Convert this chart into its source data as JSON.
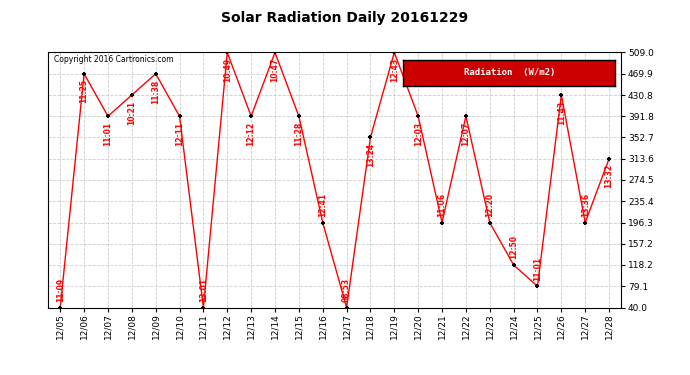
{
  "title": "Solar Radiation Daily 20161229",
  "copyright": "Copyright 2016 Cartronics.com",
  "legend_label": "Radiation  (W/m2)",
  "x_labels": [
    "12/05",
    "12/06",
    "12/07",
    "12/08",
    "12/09",
    "12/10",
    "12/11",
    "12/12",
    "12/13",
    "12/14",
    "12/15",
    "12/16",
    "12/17",
    "12/18",
    "12/19",
    "12/20",
    "12/21",
    "12/22",
    "12/23",
    "12/24",
    "12/25",
    "12/26",
    "12/27",
    "12/28"
  ],
  "y_values": [
    40.0,
    469.9,
    391.8,
    430.8,
    469.9,
    391.8,
    40.0,
    509.0,
    391.8,
    509.0,
    391.8,
    196.3,
    40.0,
    352.7,
    509.0,
    391.8,
    196.3,
    391.8,
    196.3,
    118.2,
    79.1,
    430.8,
    196.3,
    313.6
  ],
  "annotations": [
    "11:09",
    "11:25",
    "11:01",
    "10:21",
    "11:38",
    "12:11",
    "13:01",
    "10:49",
    "12:12",
    "10:47",
    "11:28",
    "12:41",
    "08:53",
    "13:24",
    "12:43",
    "12:03",
    "11:06",
    "12:07",
    "12:20",
    "12:50",
    "11:01",
    "11:43",
    "13:36",
    "13:32"
  ],
  "ylim": [
    40.0,
    509.0
  ],
  "yticks": [
    40.0,
    79.1,
    118.2,
    157.2,
    196.3,
    235.4,
    274.5,
    313.6,
    352.7,
    391.8,
    430.8,
    469.9,
    509.0
  ],
  "line_color": "#FF0000",
  "marker_color": "#000000",
  "annotation_color": "#FF0000",
  "title_color": "#000000",
  "background_color": "#FFFFFF",
  "grid_color": "#CCCCCC",
  "legend_bg": "#CC0000",
  "legend_text_color": "#FFFFFF",
  "copyright_color": "#000000"
}
